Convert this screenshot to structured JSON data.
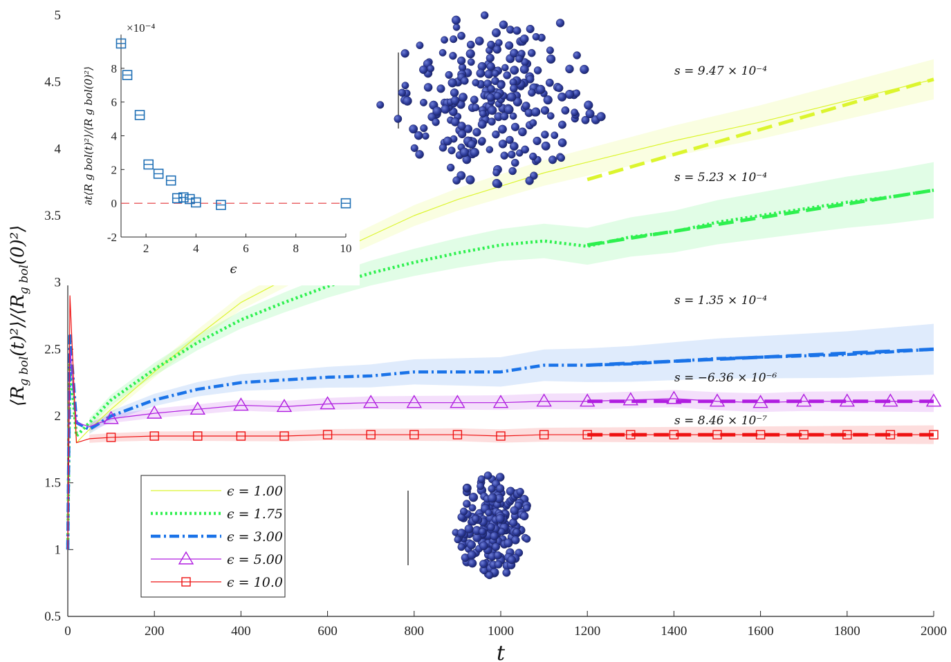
{
  "chart_data": [
    {
      "type": "line",
      "xlabel": "t",
      "ylabel": "⟨R_g bol(t)²⟩/⟨R_g bol(0)²⟩",
      "xlim": [
        0,
        2000
      ],
      "ylim": [
        0.5,
        5
      ],
      "xticks": [
        "0",
        "200",
        "400",
        "600",
        "800",
        "1000",
        "1200",
        "1400",
        "1600",
        "1800",
        "2000"
      ],
      "yticks": [
        "0.5",
        "1",
        "1.5",
        "2",
        "2.5",
        "3",
        "3.5",
        "4",
        "4.5",
        "5"
      ],
      "legend_position": "bottom-left",
      "colors": {
        "e100": "#dcf52e",
        "e175": "#2ef04f",
        "e300": "#1a73e8",
        "e500": "#b01de0",
        "e1000": "#ee1111"
      },
      "series": [
        {
          "name": "ϵ = 1.00",
          "color": "#dcf52e",
          "style": "solid",
          "x": [
            0,
            5,
            20,
            50,
            100,
            200,
            300,
            400,
            500,
            600,
            700,
            800,
            900,
            1000,
            1100,
            1200,
            1300,
            1400,
            1500,
            1600,
            1700,
            1800,
            1900,
            2000
          ],
          "y": [
            1.0,
            2.5,
            1.8,
            1.9,
            2.05,
            2.33,
            2.6,
            2.85,
            3.02,
            3.2,
            3.35,
            3.5,
            3.62,
            3.72,
            3.82,
            3.9,
            3.98,
            4.06,
            4.13,
            4.2,
            4.28,
            4.36,
            4.44,
            4.52
          ],
          "fit_slope": "s = 9.47 × 10⁻⁴",
          "fit_x": [
            1200,
            2000
          ],
          "fit_y": [
            3.77,
            4.52
          ]
        },
        {
          "name": "ϵ = 1.75",
          "color": "#2ef04f",
          "style": "dotted",
          "x": [
            0,
            5,
            20,
            50,
            100,
            200,
            300,
            400,
            500,
            600,
            700,
            800,
            900,
            1000,
            1100,
            1200,
            1300,
            1400,
            1500,
            1600,
            1700,
            1800,
            1900,
            2000
          ],
          "y": [
            1.0,
            2.4,
            1.85,
            1.95,
            2.12,
            2.35,
            2.55,
            2.72,
            2.85,
            2.97,
            3.07,
            3.15,
            3.22,
            3.28,
            3.31,
            3.27,
            3.34,
            3.38,
            3.45,
            3.5,
            3.55,
            3.6,
            3.64,
            3.69
          ],
          "fit_slope": "s = 5.23 × 10⁻⁴",
          "fit_x": [
            1200,
            2000
          ],
          "fit_y": [
            3.28,
            3.69
          ]
        },
        {
          "name": "ϵ = 3.00",
          "color": "#1a73e8",
          "style": "dashdot",
          "x": [
            0,
            5,
            20,
            50,
            100,
            200,
            300,
            400,
            500,
            600,
            700,
            800,
            900,
            1000,
            1100,
            1200,
            1300,
            1400,
            1500,
            1600,
            1700,
            1800,
            1900,
            2000
          ],
          "y": [
            1.0,
            2.6,
            1.95,
            1.9,
            2.0,
            2.12,
            2.2,
            2.25,
            2.27,
            2.29,
            2.3,
            2.33,
            2.33,
            2.33,
            2.38,
            2.38,
            2.39,
            2.41,
            2.43,
            2.44,
            2.45,
            2.46,
            2.48,
            2.5
          ],
          "fit_slope": "s = 1.35 × 10⁻⁴",
          "fit_x": [
            1200,
            2000
          ],
          "fit_y": [
            2.38,
            2.5
          ]
        },
        {
          "name": "ϵ = 5.00",
          "color": "#b01de0",
          "style": "solid-triangle",
          "x": [
            0,
            5,
            20,
            50,
            100,
            200,
            300,
            400,
            500,
            600,
            700,
            800,
            900,
            1000,
            1100,
            1200,
            1300,
            1400,
            1500,
            1600,
            1700,
            1800,
            1900,
            2000
          ],
          "y": [
            1.0,
            2.5,
            1.95,
            1.92,
            1.98,
            2.02,
            2.05,
            2.08,
            2.07,
            2.09,
            2.1,
            2.1,
            2.1,
            2.1,
            2.11,
            2.11,
            2.12,
            2.13,
            2.11,
            2.1,
            2.11,
            2.11,
            2.11,
            2.11
          ],
          "fit_slope": "s = −6.36 × 10⁻⁶",
          "fit_x": [
            1200,
            2000
          ],
          "fit_y": [
            2.11,
            2.11
          ]
        },
        {
          "name": "ϵ = 10.0",
          "color": "#ee1111",
          "style": "solid-square",
          "x": [
            0,
            5,
            20,
            50,
            100,
            200,
            300,
            400,
            500,
            600,
            700,
            800,
            900,
            1000,
            1100,
            1200,
            1300,
            1400,
            1500,
            1600,
            1700,
            1800,
            1900,
            2000
          ],
          "y": [
            1.0,
            2.9,
            1.8,
            1.83,
            1.84,
            1.85,
            1.85,
            1.85,
            1.85,
            1.86,
            1.86,
            1.86,
            1.86,
            1.85,
            1.86,
            1.86,
            1.86,
            1.86,
            1.86,
            1.86,
            1.86,
            1.86,
            1.86,
            1.86
          ],
          "fit_slope": "s = 8.46 × 10⁻⁷",
          "fit_x": [
            1200,
            2000
          ],
          "fit_y": [
            1.86,
            1.86
          ]
        }
      ]
    },
    {
      "type": "scatter",
      "xlabel": "ϵ",
      "ylabel": "∂t⟨R_g bol(t)²⟩/⟨R_g bol(0)²⟩",
      "exponent_label": "×10⁻⁴",
      "xlim": [
        1,
        10
      ],
      "ylim": [
        -2,
        10
      ],
      "xticks": [
        "2",
        "4",
        "6",
        "8",
        "10"
      ],
      "yticks": [
        "-2",
        "0",
        "2",
        "4",
        "6",
        "8"
      ],
      "reference_line": 0,
      "color": "#1f6fb5",
      "x": [
        1.0,
        1.25,
        1.75,
        2.1,
        2.5,
        3.0,
        3.25,
        3.5,
        3.75,
        4.0,
        5.0,
        10.0
      ],
      "y": [
        9.47,
        7.6,
        5.23,
        2.3,
        1.75,
        1.35,
        0.3,
        0.35,
        0.25,
        0.05,
        -0.1,
        -0.0
      ]
    }
  ],
  "legend": {
    "entries": [
      "ϵ = 1.00",
      "ϵ = 1.75",
      "ϵ = 3.00",
      "ϵ = 5.00",
      "ϵ = 10.0"
    ]
  },
  "axis_labels": {
    "x": "t",
    "y": "⟨R",
    "y_sub": "g bol",
    "y_rest": "(t)²⟩/⟨R",
    "y_sub2": "g bol",
    "y_end": "(0)²⟩",
    "inset_x": "ϵ",
    "inset_y": "∂t⟨R g bol(t)²⟩/⟨R g bol(0)²⟩",
    "inset_exp": "×10⁻⁴"
  },
  "slope_labels": [
    "s = 9.47 × 10⁻⁴",
    "s = 5.23 × 10⁻⁴",
    "s = 1.35 × 10⁻⁴",
    "s = −6.36 × 10⁻⁶",
    "s = 8.46 × 10⁻⁷"
  ]
}
